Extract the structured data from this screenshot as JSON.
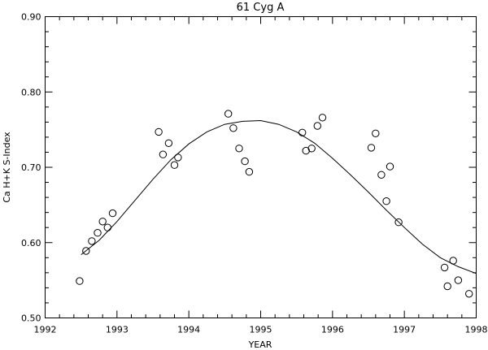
{
  "chart_data": {
    "type": "scatter",
    "title": "61 Cyg A",
    "xlabel": "YEAR",
    "ylabel": "Ca H+K S-Index",
    "xlim": [
      1992,
      1998
    ],
    "ylim": [
      0.5,
      0.9
    ],
    "x_ticks": [
      "1992",
      "1993",
      "1994",
      "1995",
      "1996",
      "1997",
      "1998"
    ],
    "y_ticks": [
      "0.50",
      "0.60",
      "0.70",
      "0.80",
      "0.90"
    ],
    "grid": false,
    "series": [
      {
        "kind": "points",
        "marker": "open-circle",
        "points": [
          {
            "x": 1992.48,
            "y": 0.549
          },
          {
            "x": 1992.57,
            "y": 0.589
          },
          {
            "x": 1992.65,
            "y": 0.602
          },
          {
            "x": 1992.73,
            "y": 0.613
          },
          {
            "x": 1992.8,
            "y": 0.628
          },
          {
            "x": 1992.87,
            "y": 0.62
          },
          {
            "x": 1992.94,
            "y": 0.639
          },
          {
            "x": 1993.58,
            "y": 0.747
          },
          {
            "x": 1993.64,
            "y": 0.717
          },
          {
            "x": 1993.72,
            "y": 0.732
          },
          {
            "x": 1993.8,
            "y": 0.703
          },
          {
            "x": 1993.85,
            "y": 0.713
          },
          {
            "x": 1994.55,
            "y": 0.771
          },
          {
            "x": 1994.62,
            "y": 0.752
          },
          {
            "x": 1994.7,
            "y": 0.725
          },
          {
            "x": 1994.78,
            "y": 0.708
          },
          {
            "x": 1994.84,
            "y": 0.694
          },
          {
            "x": 1995.58,
            "y": 0.746
          },
          {
            "x": 1995.63,
            "y": 0.722
          },
          {
            "x": 1995.71,
            "y": 0.725
          },
          {
            "x": 1995.79,
            "y": 0.755
          },
          {
            "x": 1995.86,
            "y": 0.766
          },
          {
            "x": 1996.54,
            "y": 0.726
          },
          {
            "x": 1996.6,
            "y": 0.745
          },
          {
            "x": 1996.68,
            "y": 0.69
          },
          {
            "x": 1996.75,
            "y": 0.655
          },
          {
            "x": 1996.8,
            "y": 0.701
          },
          {
            "x": 1996.92,
            "y": 0.627
          },
          {
            "x": 1997.56,
            "y": 0.567
          },
          {
            "x": 1997.6,
            "y": 0.542
          },
          {
            "x": 1997.68,
            "y": 0.576
          },
          {
            "x": 1997.75,
            "y": 0.55
          },
          {
            "x": 1997.9,
            "y": 0.532
          }
        ]
      },
      {
        "kind": "line",
        "points": [
          {
            "x": 1992.5,
            "y": 0.584
          },
          {
            "x": 1992.75,
            "y": 0.603
          },
          {
            "x": 1993.0,
            "y": 0.628
          },
          {
            "x": 1993.25,
            "y": 0.656
          },
          {
            "x": 1993.5,
            "y": 0.684
          },
          {
            "x": 1993.75,
            "y": 0.71
          },
          {
            "x": 1994.0,
            "y": 0.731
          },
          {
            "x": 1994.25,
            "y": 0.747
          },
          {
            "x": 1994.5,
            "y": 0.757
          },
          {
            "x": 1994.75,
            "y": 0.761
          },
          {
            "x": 1995.0,
            "y": 0.762
          },
          {
            "x": 1995.25,
            "y": 0.757
          },
          {
            "x": 1995.5,
            "y": 0.747
          },
          {
            "x": 1995.75,
            "y": 0.732
          },
          {
            "x": 1996.0,
            "y": 0.712
          },
          {
            "x": 1996.25,
            "y": 0.69
          },
          {
            "x": 1996.5,
            "y": 0.667
          },
          {
            "x": 1996.75,
            "y": 0.643
          },
          {
            "x": 1997.0,
            "y": 0.62
          },
          {
            "x": 1997.25,
            "y": 0.598
          },
          {
            "x": 1997.5,
            "y": 0.58
          },
          {
            "x": 1997.75,
            "y": 0.568
          },
          {
            "x": 1998.0,
            "y": 0.559
          }
        ]
      }
    ]
  }
}
